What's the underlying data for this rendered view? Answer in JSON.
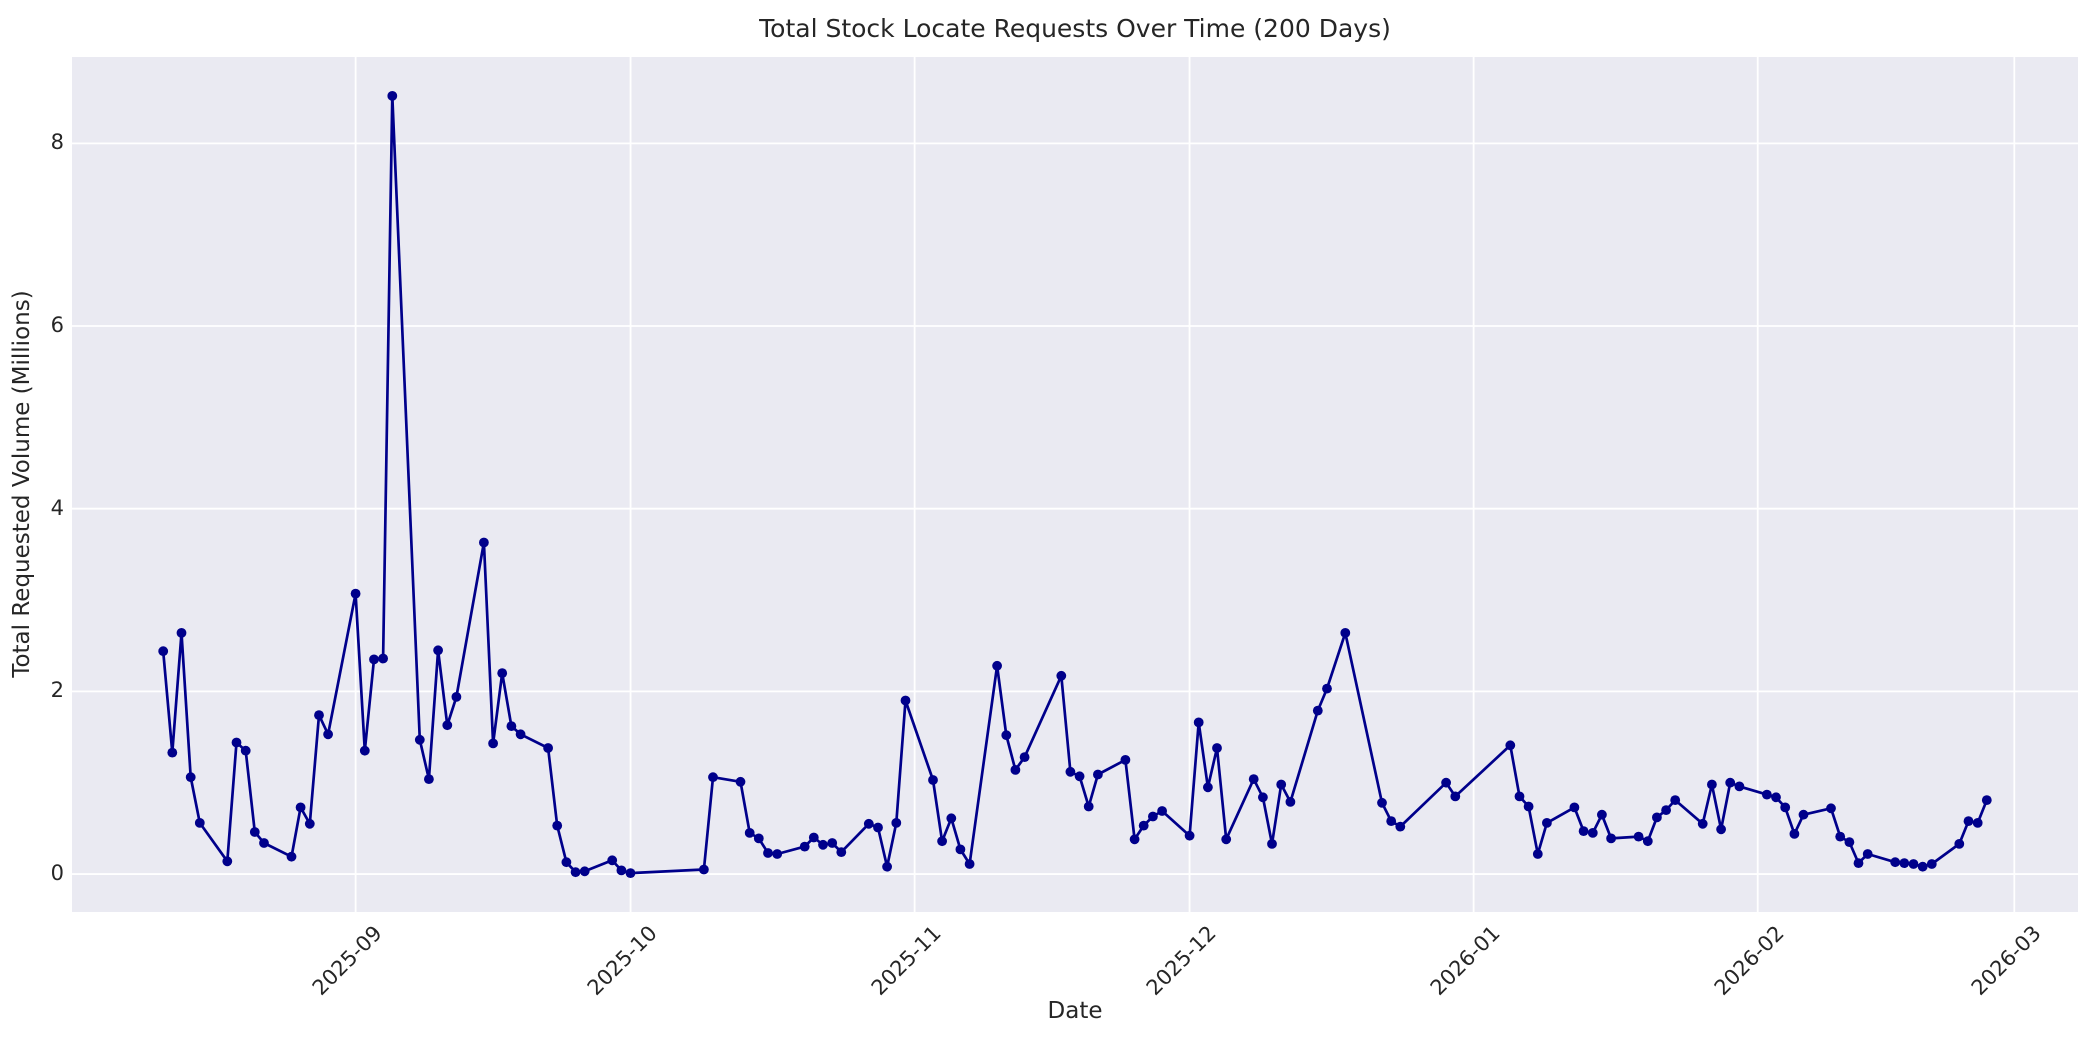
{
  "chart_data": {
    "type": "line",
    "title": "Total Stock Locate Requests Over Time (200 Days)",
    "xlabel": "Date",
    "ylabel": "Total Requested Volume (Millions)",
    "x_tick_labels": [
      "2025-09",
      "2025-10",
      "2025-11",
      "2025-12",
      "2026-01",
      "2026-02",
      "2026-03"
    ],
    "y_tick_labels": [
      0,
      2,
      4,
      6,
      8
    ],
    "ylim": [
      -0.42,
      8.95
    ],
    "grid": "on",
    "legend_position": "none",
    "series": [
      {
        "name": "total_requested_volume",
        "dates": [
          "2025-08-11",
          "2025-08-12",
          "2025-08-13",
          "2025-08-14",
          "2025-08-15",
          "2025-08-18",
          "2025-08-19",
          "2025-08-20",
          "2025-08-21",
          "2025-08-22",
          "2025-08-25",
          "2025-08-26",
          "2025-08-27",
          "2025-08-28",
          "2025-08-29",
          "2025-09-01",
          "2025-09-02",
          "2025-09-03",
          "2025-09-04",
          "2025-09-05",
          "2025-09-08",
          "2025-09-09",
          "2025-09-10",
          "2025-09-11",
          "2025-09-12",
          "2025-09-15",
          "2025-09-16",
          "2025-09-17",
          "2025-09-18",
          "2025-09-19",
          "2025-09-22",
          "2025-09-23",
          "2025-09-24",
          "2025-09-25",
          "2025-09-26",
          "2025-09-29",
          "2025-09-30",
          "2025-10-01",
          "2025-10-09",
          "2025-10-10",
          "2025-10-13",
          "2025-10-14",
          "2025-10-15",
          "2025-10-16",
          "2025-10-17",
          "2025-10-20",
          "2025-10-21",
          "2025-10-22",
          "2025-10-23",
          "2025-10-24",
          "2025-10-27",
          "2025-10-28",
          "2025-10-29",
          "2025-10-30",
          "2025-10-31",
          "2025-11-03",
          "2025-11-04",
          "2025-11-05",
          "2025-11-06",
          "2025-11-07",
          "2025-11-10",
          "2025-11-11",
          "2025-11-12",
          "2025-11-13",
          "2025-11-17",
          "2025-11-18",
          "2025-11-19",
          "2025-11-20",
          "2025-11-21",
          "2025-11-24",
          "2025-11-25",
          "2025-11-26",
          "2025-11-27",
          "2025-11-28",
          "2025-12-01",
          "2025-12-02",
          "2025-12-03",
          "2025-12-04",
          "2025-12-05",
          "2025-12-08",
          "2025-12-09",
          "2025-12-10",
          "2025-12-11",
          "2025-12-12",
          "2025-12-15",
          "2025-12-16",
          "2025-12-18",
          "2025-12-22",
          "2025-12-23",
          "2025-12-24",
          "2025-12-29",
          "2025-12-30",
          "2026-01-05",
          "2026-01-06",
          "2026-01-07",
          "2026-01-08",
          "2026-01-09",
          "2026-01-12",
          "2026-01-13",
          "2026-01-14",
          "2026-01-15",
          "2026-01-16",
          "2026-01-19",
          "2026-01-20",
          "2026-01-21",
          "2026-01-22",
          "2026-01-23",
          "2026-01-26",
          "2026-01-27",
          "2026-01-28",
          "2026-01-29",
          "2026-01-30",
          "2026-02-02",
          "2026-02-03",
          "2026-02-04",
          "2026-02-05",
          "2026-02-06",
          "2026-02-09",
          "2026-02-10",
          "2026-02-11",
          "2026-02-12",
          "2026-02-13",
          "2026-02-16",
          "2026-02-17",
          "2026-02-18",
          "2026-02-19",
          "2026-02-20",
          "2026-02-23",
          "2026-02-24",
          "2026-02-25",
          "2026-02-26"
        ],
        "values": [
          2.44,
          1.33,
          2.64,
          1.06,
          0.56,
          0.14,
          1.44,
          1.35,
          0.46,
          0.34,
          0.19,
          0.73,
          0.55,
          1.74,
          1.53,
          3.07,
          1.35,
          2.35,
          2.36,
          8.52,
          1.47,
          1.04,
          2.45,
          1.63,
          1.94,
          3.63,
          1.43,
          2.2,
          1.62,
          1.53,
          1.38,
          0.53,
          0.13,
          0.02,
          0.03,
          0.15,
          0.04,
          0.01,
          0.05,
          1.06,
          1.01,
          0.45,
          0.39,
          0.23,
          0.22,
          0.3,
          0.4,
          0.32,
          0.34,
          0.24,
          0.55,
          0.51,
          0.08,
          0.56,
          1.9,
          1.03,
          0.36,
          0.61,
          0.27,
          0.11,
          2.28,
          1.52,
          1.14,
          1.28,
          2.17,
          1.12,
          1.07,
          0.74,
          1.09,
          1.25,
          0.38,
          0.53,
          0.63,
          0.69,
          0.42,
          1.66,
          0.95,
          1.38,
          0.38,
          1.04,
          0.84,
          0.33,
          0.98,
          0.79,
          1.79,
          2.03,
          2.64,
          0.78,
          0.58,
          0.52,
          1.0,
          0.85,
          1.41,
          0.85,
          0.74,
          0.22,
          0.56,
          0.73,
          0.47,
          0.45,
          0.65,
          0.39,
          0.41,
          0.36,
          0.62,
          0.7,
          0.81,
          0.55,
          0.98,
          0.49,
          1.0,
          0.96,
          0.87,
          0.84,
          0.73,
          0.44,
          0.65,
          0.72,
          0.41,
          0.35,
          0.12,
          0.22,
          0.13,
          0.12,
          0.11,
          0.08,
          0.11,
          0.33,
          0.58,
          0.56,
          0.81
        ]
      }
    ],
    "style": {
      "line_color": "#00008b",
      "marker": "circle",
      "marker_color": "#00008b",
      "plot_background": "#eaeaf2",
      "grid_color": "#ffffff",
      "text_color": "#262626",
      "figure_background": "#ffffff"
    }
  }
}
